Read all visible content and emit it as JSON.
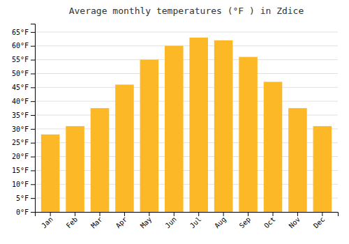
{
  "chart_data": {
    "type": "bar",
    "title": "Average monthly temperatures (°F ) in Zdice",
    "categories": [
      "Jan",
      "Feb",
      "Mar",
      "Apr",
      "May",
      "Jun",
      "Jul",
      "Aug",
      "Sep",
      "Oct",
      "Nov",
      "Dec"
    ],
    "values": [
      28,
      31,
      37.5,
      46,
      55,
      60,
      63,
      62,
      56,
      47,
      37.5,
      31
    ],
    "color": "#FDB827",
    "ylim": [
      0,
      68
    ],
    "yticks": [
      {
        "value": 0,
        "label": "0°F"
      },
      {
        "value": 5,
        "label": "5°F"
      },
      {
        "value": 10,
        "label": "10°F"
      },
      {
        "value": 15,
        "label": "15°F"
      },
      {
        "value": 20,
        "label": "20°F"
      },
      {
        "value": 25,
        "label": "25°F"
      },
      {
        "value": 30,
        "label": "30°F"
      },
      {
        "value": 35,
        "label": "35°F"
      },
      {
        "value": 40,
        "label": "40°F"
      },
      {
        "value": 45,
        "label": "45°F"
      },
      {
        "value": 50,
        "label": "50°F"
      },
      {
        "value": 55,
        "label": "55°F"
      },
      {
        "value": 60,
        "label": "60°F"
      },
      {
        "value": 65,
        "label": "65°F"
      }
    ],
    "grid": true
  }
}
